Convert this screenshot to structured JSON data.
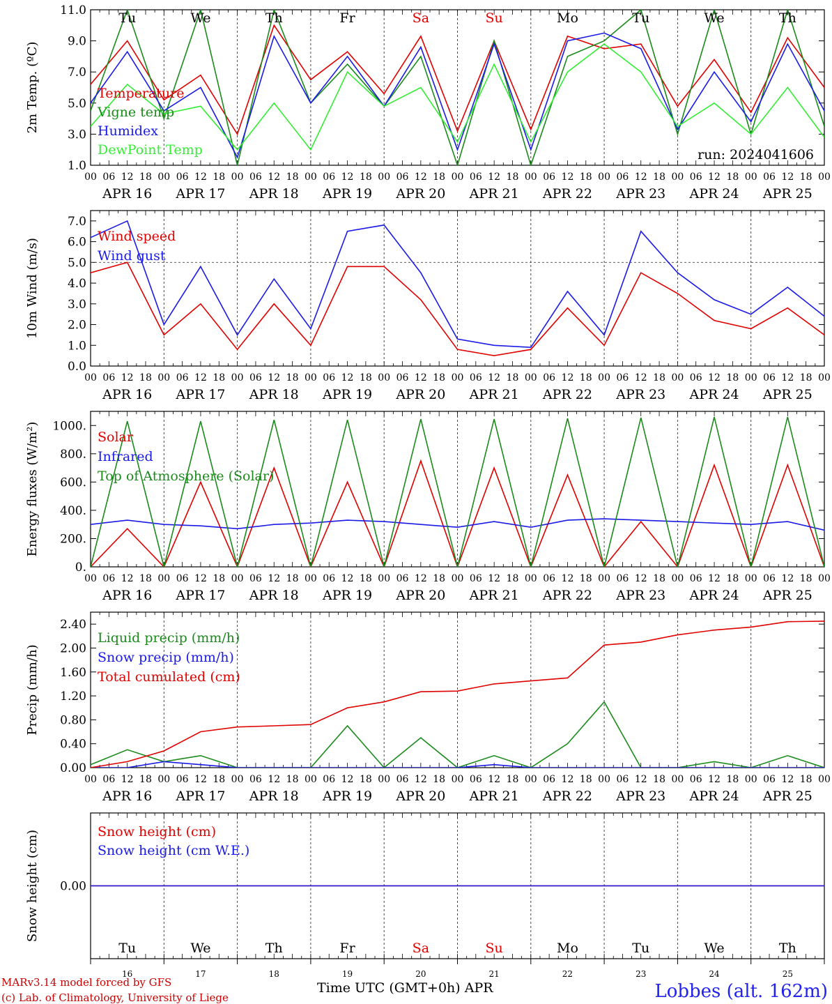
{
  "dates": [
    "APR 16",
    "APR 17",
    "APR 18",
    "APR 19",
    "APR 20",
    "APR 21",
    "APR 22",
    "APR 23",
    "APR 24",
    "APR 25"
  ],
  "hour_ticks": [
    "00",
    "06",
    "12",
    "18"
  ],
  "final_hour_tick": "00",
  "day_abbr": [
    {
      "text": "Tu",
      "color": "#000000"
    },
    {
      "text": "We",
      "color": "#000000"
    },
    {
      "text": "Th",
      "color": "#000000"
    },
    {
      "text": "Fr",
      "color": "#000000"
    },
    {
      "text": "Sa",
      "color": "#e00000"
    },
    {
      "text": "Su",
      "color": "#e00000"
    },
    {
      "text": "Mo",
      "color": "#000000"
    },
    {
      "text": "Tu",
      "color": "#000000"
    },
    {
      "text": "We",
      "color": "#000000"
    },
    {
      "text": "Th",
      "color": "#000000"
    }
  ],
  "day_numbers": [
    "16",
    "17",
    "18",
    "19",
    "20",
    "21",
    "22",
    "23",
    "24",
    "25"
  ],
  "footer": {
    "model": "MARv3.14 model forced by GFS",
    "lab": "(c) Lab. of Climatology, University of Liege",
    "time_label": "Time UTC (GMT+0h) APR",
    "station": "Lobbes (alt. 162m)"
  },
  "chart_data": [
    {
      "type": "line",
      "ylabel": "2m Temp. (ºC)",
      "ylim": [
        1,
        11
      ],
      "yticks": [
        "1.0",
        "3.0",
        "5.0",
        "7.0",
        "9.0",
        "11.0"
      ],
      "yticks_values": [
        1,
        3,
        5,
        7,
        9,
        11
      ],
      "annotation": "run: 2024041606",
      "x_hours": [
        0,
        12,
        24,
        36,
        48,
        60,
        72,
        84,
        96,
        108,
        120,
        132,
        144,
        156,
        168,
        180,
        192,
        204,
        216,
        228,
        240
      ],
      "series": [
        {
          "name": "Temperature",
          "color": "#e00000",
          "values": [
            6.2,
            9.0,
            5.2,
            6.8,
            3.0,
            10.0,
            6.5,
            8.3,
            5.6,
            9.3,
            3.2,
            9.0,
            3.3,
            9.3,
            8.5,
            8.8,
            4.8,
            7.8,
            4.4,
            9.2,
            6.0
          ]
        },
        {
          "name": "Vigne temp",
          "color": "#1a8a1a",
          "values": [
            4.5,
            11.0,
            4.0,
            11.0,
            1.0,
            11.0,
            5.0,
            7.5,
            4.8,
            8.0,
            1.0,
            9.0,
            1.0,
            8.0,
            9.0,
            11.0,
            3.0,
            11.0,
            3.0,
            11.0,
            3.5
          ]
        },
        {
          "name": "Humidex",
          "color": "#1a1ae6",
          "values": [
            5.0,
            8.3,
            4.5,
            6.0,
            1.5,
            9.3,
            5.0,
            8.0,
            4.8,
            8.6,
            2.0,
            8.8,
            2.0,
            9.0,
            9.5,
            8.5,
            3.3,
            7.0,
            3.8,
            8.8,
            4.5
          ]
        },
        {
          "name": "DewPoint Temp",
          "color": "#33ee33",
          "values": [
            3.5,
            6.2,
            4.3,
            4.8,
            2.0,
            5.0,
            2.0,
            7.0,
            4.8,
            6.0,
            2.5,
            7.5,
            2.5,
            7.0,
            8.8,
            7.0,
            3.5,
            5.0,
            3.0,
            6.0,
            2.8
          ]
        }
      ]
    },
    {
      "type": "line",
      "ylabel": "10m Wind (m/s)",
      "ylim": [
        0,
        7.5
      ],
      "yticks": [
        "0.0",
        "1.0",
        "2.0",
        "3.0",
        "4.0",
        "5.0",
        "6.0",
        "7.0"
      ],
      "yticks_values": [
        0,
        1,
        2,
        3,
        4,
        5,
        6,
        7
      ],
      "hline": 5,
      "x_hours": [
        0,
        12,
        24,
        36,
        48,
        60,
        72,
        84,
        96,
        108,
        120,
        132,
        144,
        156,
        168,
        180,
        192,
        204,
        216,
        228,
        240
      ],
      "series": [
        {
          "name": "Wind speed",
          "color": "#e00000",
          "values": [
            4.5,
            5.0,
            1.5,
            3.0,
            0.8,
            3.0,
            1.0,
            4.8,
            4.8,
            3.2,
            0.8,
            0.5,
            0.8,
            2.8,
            1.0,
            4.5,
            3.5,
            2.2,
            1.8,
            2.8,
            1.5
          ]
        },
        {
          "name": "Wind gust",
          "color": "#1a1ae6",
          "values": [
            6.2,
            7.0,
            2.0,
            4.8,
            1.5,
            4.2,
            1.8,
            6.5,
            6.8,
            4.5,
            1.3,
            1.0,
            0.9,
            3.6,
            1.5,
            6.5,
            4.5,
            3.2,
            2.5,
            3.8,
            2.4
          ]
        }
      ]
    },
    {
      "type": "line",
      "ylabel": "Energy fluxes (W/m²)",
      "ylim": [
        0,
        1100
      ],
      "yticks": [
        "0.",
        "200.",
        "400.",
        "600.",
        "800.",
        "1000."
      ],
      "yticks_values": [
        0,
        200,
        400,
        600,
        800,
        1000
      ],
      "x_hours": [
        0,
        12,
        24,
        36,
        48,
        60,
        72,
        84,
        96,
        108,
        120,
        132,
        144,
        156,
        168,
        180,
        192,
        204,
        216,
        228,
        240
      ],
      "series": [
        {
          "name": "Solar",
          "color": "#e00000",
          "values": [
            0,
            270,
            0,
            600,
            0,
            700,
            0,
            600,
            0,
            750,
            0,
            700,
            0,
            650,
            0,
            320,
            0,
            720,
            0,
            720,
            0
          ]
        },
        {
          "name": "Infrared",
          "color": "#1a1ae6",
          "values": [
            300,
            330,
            300,
            290,
            270,
            300,
            310,
            330,
            320,
            300,
            280,
            320,
            280,
            330,
            340,
            330,
            320,
            310,
            300,
            320,
            260
          ]
        },
        {
          "name": "Top of Atmosphere (Solar)",
          "color": "#1a8a1a",
          "values": [
            0,
            1030,
            0,
            1030,
            0,
            1040,
            0,
            1040,
            0,
            1045,
            0,
            1045,
            0,
            1050,
            0,
            1055,
            0,
            1060,
            0,
            1060,
            0
          ]
        }
      ]
    },
    {
      "type": "line",
      "ylabel": "Precip (mm/h)",
      "ylim": [
        0,
        2.6
      ],
      "yticks": [
        "0.00",
        "0.40",
        "0.80",
        "1.20",
        "1.60",
        "2.00",
        "2.40"
      ],
      "yticks_values": [
        0,
        0.4,
        0.8,
        1.2,
        1.6,
        2.0,
        2.4
      ],
      "x_hours": [
        0,
        12,
        24,
        36,
        48,
        60,
        72,
        84,
        96,
        108,
        120,
        132,
        144,
        156,
        168,
        180,
        192,
        204,
        216,
        228,
        240
      ],
      "series": [
        {
          "name": "Liquid precip (mm/h)",
          "color": "#1a8a1a",
          "values": [
            0.05,
            0.3,
            0.1,
            0.2,
            0.0,
            0.0,
            0.0,
            0.7,
            0.0,
            0.5,
            0.0,
            0.2,
            0.0,
            0.4,
            1.1,
            0.0,
            0.0,
            0.1,
            0.0,
            0.2,
            0.0
          ]
        },
        {
          "name": "Snow precip (mm/h)",
          "color": "#1a1ae6",
          "values": [
            0,
            0,
            0.1,
            0.05,
            0,
            0,
            0,
            0,
            0,
            0,
            0,
            0.05,
            0,
            0,
            0,
            0,
            0,
            0,
            0,
            0,
            0
          ]
        },
        {
          "name": "Total cumulated (cm)",
          "color": "#e00000",
          "values": [
            0.0,
            0.1,
            0.28,
            0.6,
            0.68,
            0.7,
            0.72,
            1.0,
            1.1,
            1.27,
            1.28,
            1.4,
            1.45,
            1.5,
            2.05,
            2.1,
            2.22,
            2.3,
            2.35,
            2.44,
            2.45
          ]
        }
      ]
    },
    {
      "type": "line",
      "ylabel": "Snow height (cm)",
      "ylim": [
        -1,
        1
      ],
      "yticks": [
        "0.00"
      ],
      "yticks_values": [
        0
      ],
      "x_hours": [
        0,
        240
      ],
      "series": [
        {
          "name": "Snow height (cm)",
          "color": "#e00000",
          "values": [
            0,
            0
          ]
        },
        {
          "name": "Snow height (cm W.E.)",
          "color": "#1a1ae6",
          "values": [
            0,
            0
          ]
        }
      ]
    }
  ]
}
